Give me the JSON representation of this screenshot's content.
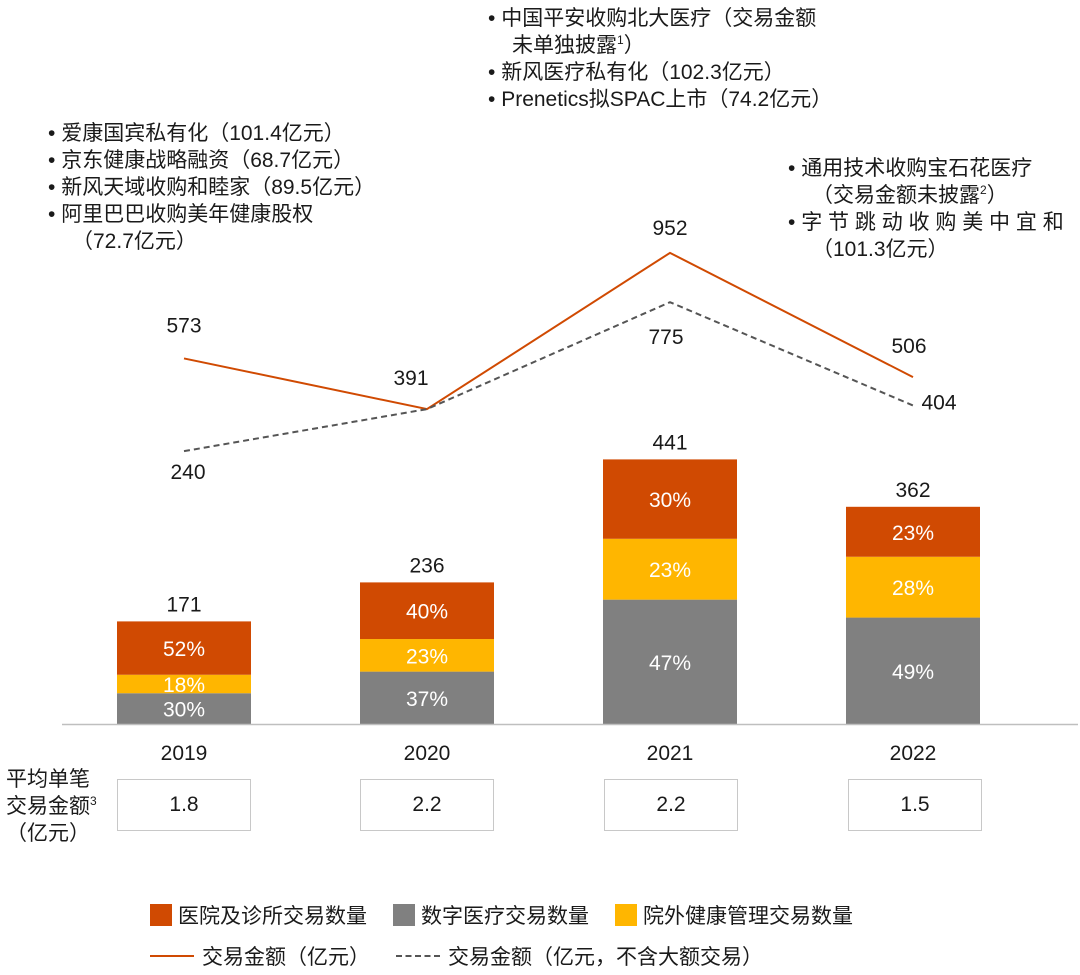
{
  "chart_data": {
    "type": "bar",
    "categories": [
      "2019",
      "2020",
      "2021",
      "2022"
    ],
    "bar_totals": [
      "171",
      "236",
      "441",
      "362"
    ],
    "stacks": [
      {
        "name": "数字医疗交易数量",
        "color": "#808080",
        "labels": [
          "30%",
          "37%",
          "47%",
          "49%"
        ],
        "shares": [
          0.3,
          0.37,
          0.47,
          0.49
        ]
      },
      {
        "name": "院外健康管理交易数量",
        "color": "#FFB600",
        "labels": [
          "18%",
          "23%",
          "23%",
          "28%"
        ],
        "shares": [
          0.18,
          0.23,
          0.23,
          0.28
        ]
      },
      {
        "name": "医院及诊所交易数量",
        "color": "#D04A02",
        "labels": [
          "52%",
          "40%",
          "30%",
          "23%"
        ],
        "shares": [
          0.52,
          0.4,
          0.3,
          0.23
        ]
      }
    ],
    "lines": [
      {
        "name": "交易金额（亿元）",
        "color": "#D04A02",
        "style": "solid",
        "values": [
          573,
          391,
          952,
          506
        ],
        "labels": [
          "573",
          "391",
          "952",
          "506"
        ]
      },
      {
        "name": "交易金额（亿元，不含大额交易）",
        "color": "#555555",
        "style": "dashed",
        "values": [
          240,
          391,
          775,
          404
        ],
        "labels": [
          "240",
          "",
          "775",
          "404"
        ]
      }
    ],
    "avg_label": [
      "平均单笔",
      "交易金额",
      "（亿元）"
    ],
    "avg_sup": "3",
    "avg_values": [
      "1.8",
      "2.2",
      "2.2",
      "1.5"
    ],
    "legend_position": "bottom",
    "grid": false
  },
  "annotations": {
    "a2019": [
      "爱康国宾私有化（101.4亿元）",
      "京东健康战略融资（68.7亿元）",
      "新风天域收购和睦家（89.5亿元）",
      "阿里巴巴收购美年健康股权",
      "（72.7亿元）"
    ],
    "a2021": [
      "中国平安收购北大医疗（交易金额",
      "未单独披露",
      "新风医疗私有化（102.3亿元）",
      "Prenetics拟SPAC上市（74.2亿元）"
    ],
    "a2021_sup": "1",
    "a2021_close": "）",
    "a2022": [
      "通用技术收购宝石花医疗",
      "（交易金额未披露",
      "字 节 跳 动 收 购 美 中 宜 和",
      "（101.3亿元）"
    ],
    "a2022_sup": "2",
    "a2022_close": "）",
    "bullet": "•"
  }
}
